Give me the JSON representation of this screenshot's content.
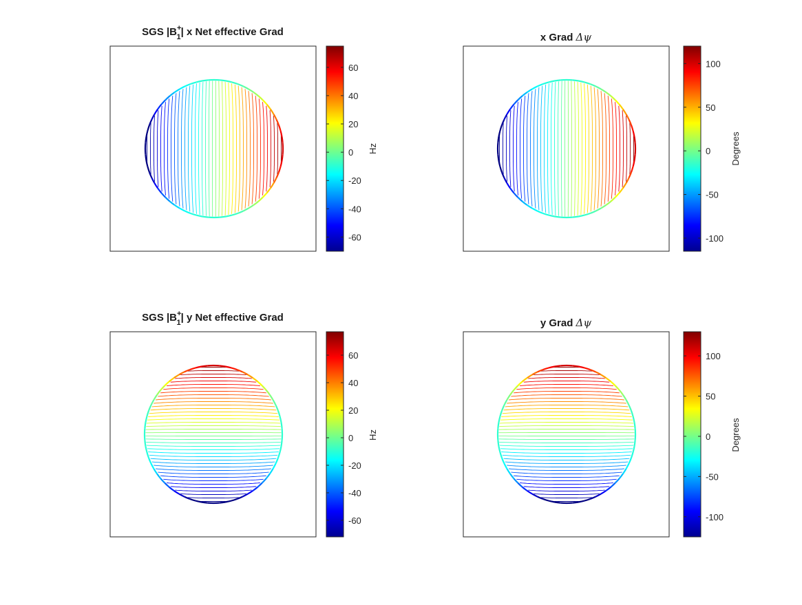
{
  "figure": {
    "background": "#ffffff",
    "colormap": "jet"
  },
  "chart_data": [
    {
      "type": "contour",
      "title_parts": {
        "main": "SGS |B",
        "sup": "+",
        "sub": "1",
        "rest": "| x  Net effective Grad"
      },
      "orientation": "x",
      "grid": false,
      "colorbar": {
        "label": "Hz",
        "range": [
          -70,
          75
        ],
        "ticks": [
          -60,
          -40,
          -20,
          0,
          20,
          40,
          60
        ],
        "tick_labels": [
          "-60",
          "-40",
          "-20",
          "0",
          "20",
          "40",
          "60"
        ]
      },
      "contour_levels": 40
    },
    {
      "type": "contour",
      "title_parts": {
        "main": "x Grad ",
        "greek": "Δψ"
      },
      "orientation": "x",
      "grid": false,
      "colorbar": {
        "label": "Degrees",
        "range": [
          -115,
          120
        ],
        "ticks": [
          -100,
          -50,
          0,
          50,
          100
        ],
        "tick_labels": [
          "-100",
          "-50",
          "0",
          "50",
          "100"
        ]
      },
      "contour_levels": 40
    },
    {
      "type": "contour",
      "title_parts": {
        "main": "SGS |B",
        "sup": "+",
        "sub": "1",
        "rest": "| y Net effective Grad"
      },
      "orientation": "y",
      "grid": false,
      "colorbar": {
        "label": "Hz",
        "range": [
          -72,
          77
        ],
        "ticks": [
          -60,
          -40,
          -20,
          0,
          20,
          40,
          60
        ],
        "tick_labels": [
          "-60",
          "-40",
          "-20",
          "0",
          "20",
          "40",
          "60"
        ]
      },
      "contour_levels": 40
    },
    {
      "type": "contour",
      "title_parts": {
        "main": "y Grad ",
        "greek": "Δψ"
      },
      "orientation": "y",
      "grid": false,
      "colorbar": {
        "label": "Degrees",
        "range": [
          -125,
          130
        ],
        "ticks": [
          -100,
          -50,
          0,
          50,
          100
        ],
        "tick_labels": [
          "-100",
          "-50",
          "0",
          "50",
          "100"
        ]
      },
      "contour_levels": 40
    }
  ]
}
